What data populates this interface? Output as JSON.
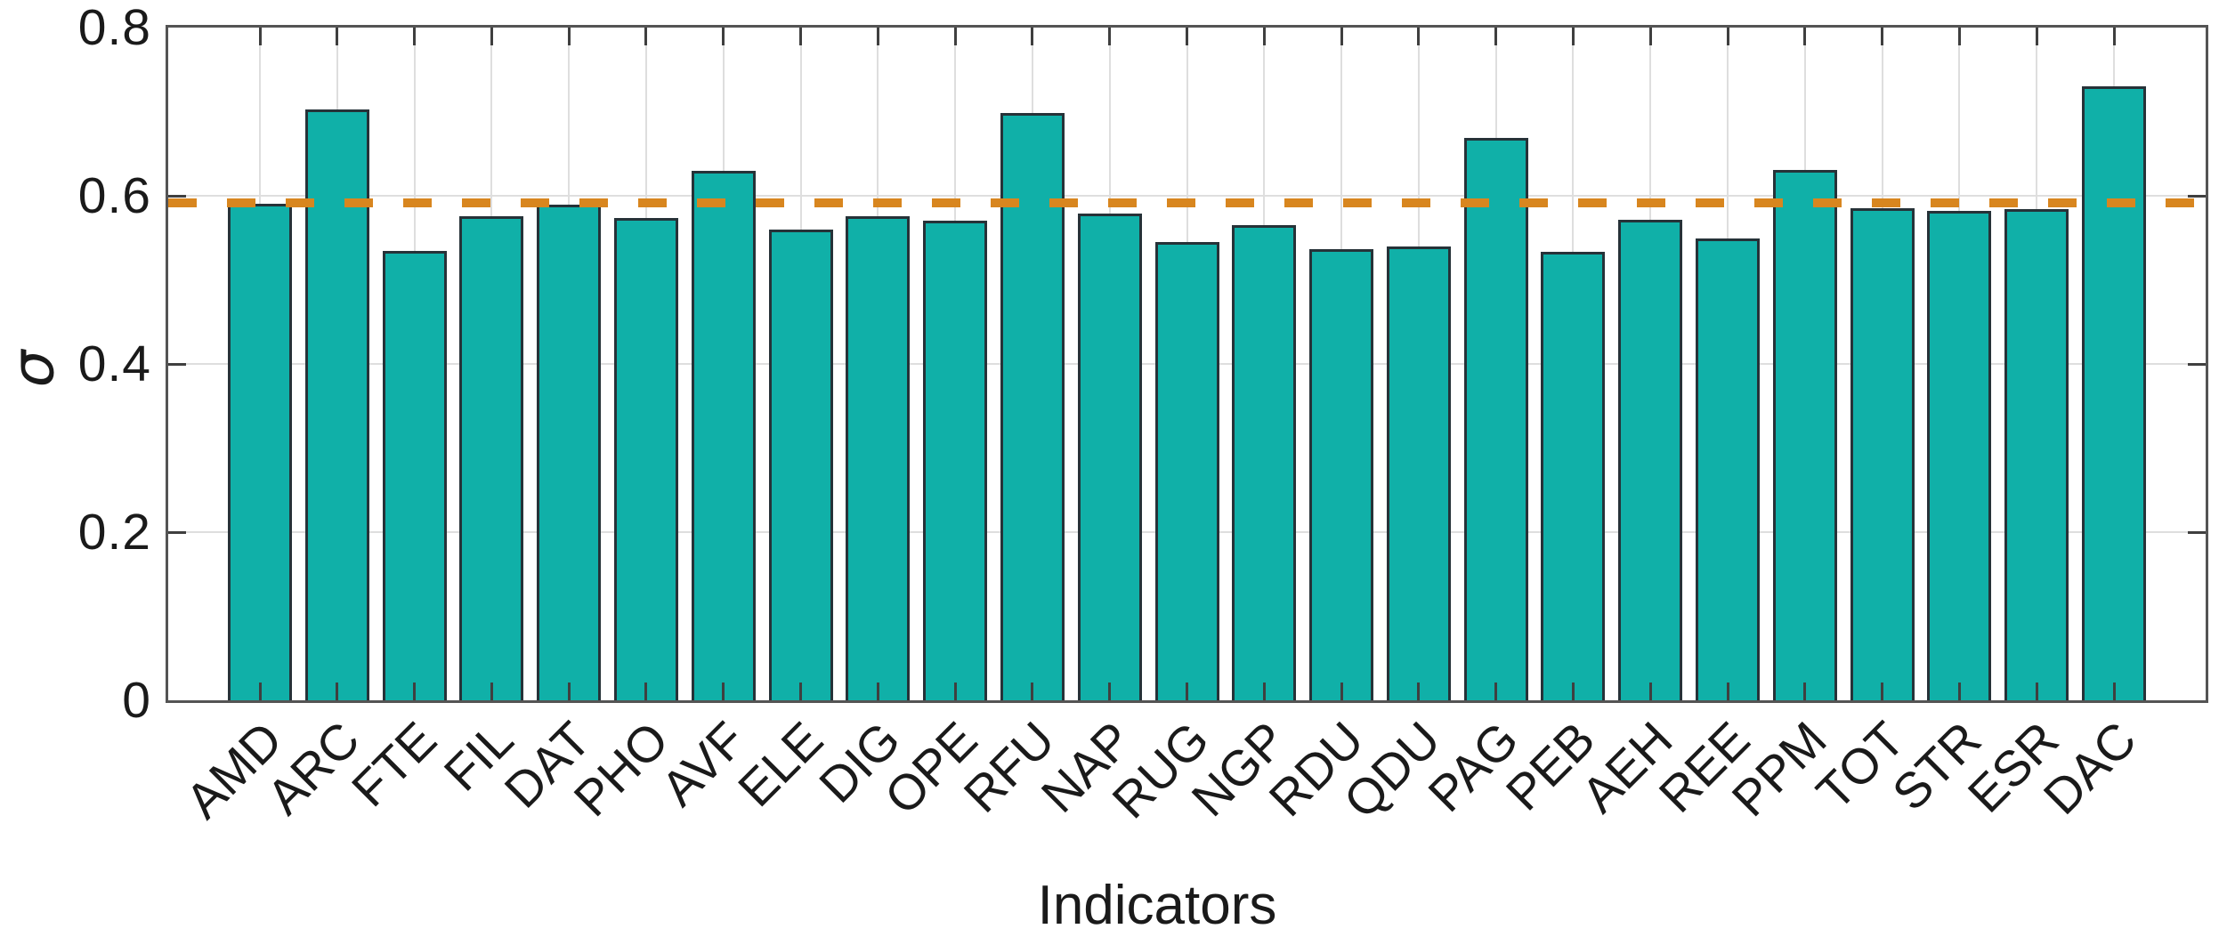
{
  "chart_data": {
    "type": "bar",
    "title": "",
    "xlabel": "Indicators",
    "ylabel": "σ",
    "categories": [
      "AMD",
      "ARC",
      "FTE",
      "FIL",
      "DAT",
      "PHO",
      "AVF",
      "ELE",
      "DIG",
      "OPE",
      "RFU",
      "NAP",
      "RUG",
      "NGP",
      "RDU",
      "QDU",
      "PAG",
      "PEB",
      "AEH",
      "REE",
      "PPM",
      "TOT",
      "STR",
      "ESR",
      "DAC"
    ],
    "values": [
      0.59,
      0.703,
      0.534,
      0.576,
      0.589,
      0.574,
      0.63,
      0.56,
      0.576,
      0.57,
      0.698,
      0.579,
      0.545,
      0.565,
      0.537,
      0.54,
      0.669,
      0.533,
      0.571,
      0.549,
      0.631,
      0.585,
      0.582,
      0.584,
      0.73
    ],
    "ylim": [
      0,
      0.8
    ],
    "yticks": [
      0,
      0.2,
      0.4,
      0.6,
      0.8
    ],
    "ytick_labels": [
      "0",
      "0.2",
      "0.4",
      "0.6",
      "0.8"
    ],
    "grid": true,
    "legend_position": "none",
    "reference_line": {
      "value": 0.592,
      "style": "dashed"
    },
    "colors": {
      "bar_fill": "#10b0a8",
      "bar_edge": "#263238",
      "reference_line": "#d8861f",
      "grid": "#dedede",
      "axis": "#545454",
      "text": "#1a1a1a"
    }
  }
}
